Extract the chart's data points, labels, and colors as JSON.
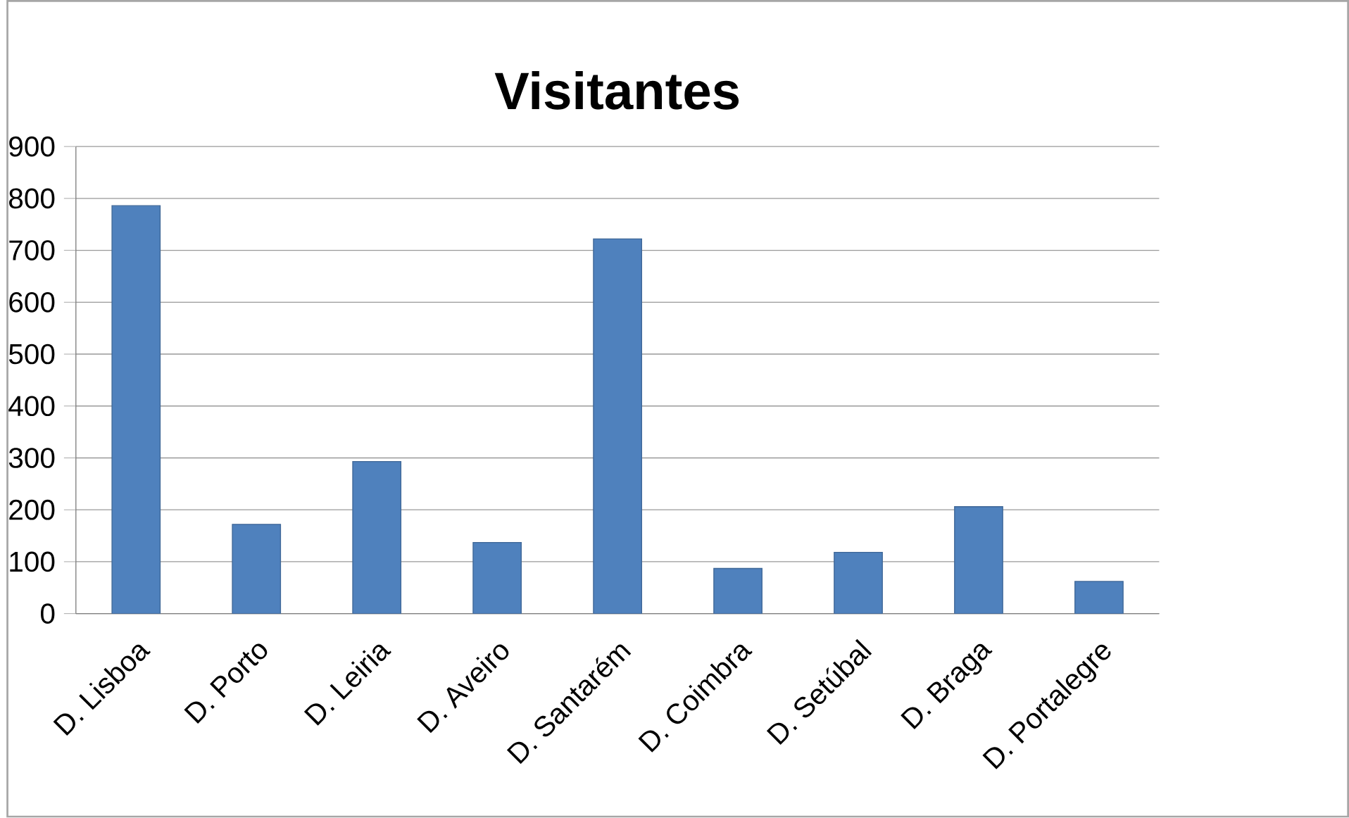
{
  "chart_data": {
    "type": "bar",
    "title": "Visitantes",
    "categories": [
      "D. Lisboa",
      "D. Porto",
      "D. Leiria",
      "D. Aveiro",
      "D. Santarém",
      "D. Coimbra",
      "D. Setúbal",
      "D. Braga",
      "D. Portalegre"
    ],
    "values": [
      786,
      172,
      293,
      137,
      722,
      87,
      118,
      206,
      62
    ],
    "color": "#4f81bd",
    "ylim": [
      0,
      900
    ],
    "yticks": [
      0,
      100,
      200,
      300,
      400,
      500,
      600,
      700,
      800,
      900
    ],
    "grid": "y"
  }
}
